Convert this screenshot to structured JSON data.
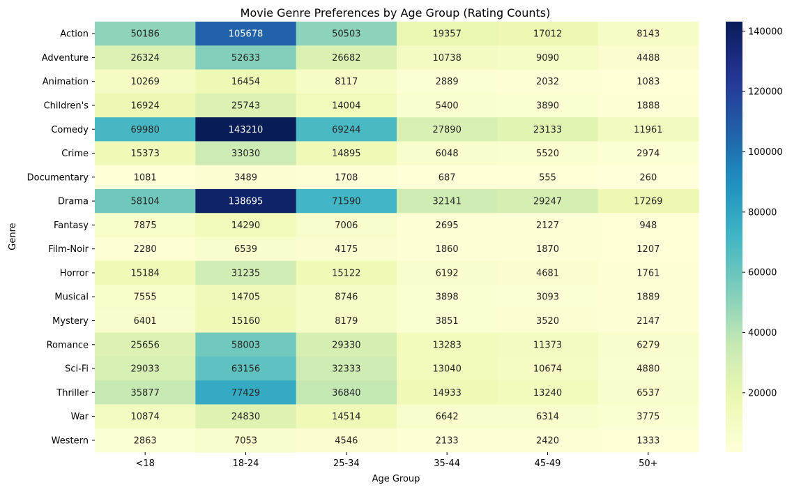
{
  "chart_data": {
    "type": "heatmap",
    "title": "Movie Genre Preferences by Age Group (Rating Counts)",
    "xlabel": "Age Group",
    "ylabel": "Genre",
    "x_categories": [
      "<18",
      "18-24",
      "25-34",
      "35-44",
      "45-49",
      "50+"
    ],
    "y_categories": [
      "Action",
      "Adventure",
      "Animation",
      "Children's",
      "Comedy",
      "Crime",
      "Documentary",
      "Drama",
      "Fantasy",
      "Film-Noir",
      "Horror",
      "Musical",
      "Mystery",
      "Romance",
      "Sci-Fi",
      "Thriller",
      "War",
      "Western"
    ],
    "values": [
      [
        50186,
        105678,
        50503,
        19357,
        17012,
        8143
      ],
      [
        26324,
        52633,
        26682,
        10738,
        9090,
        4488
      ],
      [
        10269,
        16454,
        8117,
        2889,
        2032,
        1083
      ],
      [
        16924,
        25743,
        14004,
        5400,
        3890,
        1888
      ],
      [
        69980,
        143210,
        69244,
        27890,
        23133,
        11961
      ],
      [
        15373,
        33030,
        14895,
        6048,
        5520,
        2974
      ],
      [
        1081,
        3489,
        1708,
        687,
        555,
        260
      ],
      [
        58104,
        138695,
        71590,
        32141,
        29247,
        17269
      ],
      [
        7875,
        14290,
        7006,
        2695,
        2127,
        948
      ],
      [
        2280,
        6539,
        4175,
        1860,
        1870,
        1207
      ],
      [
        15184,
        31235,
        15122,
        6192,
        4681,
        1761
      ],
      [
        7555,
        14705,
        8746,
        3898,
        3093,
        1889
      ],
      [
        6401,
        15160,
        8179,
        3851,
        3520,
        2147
      ],
      [
        25656,
        58003,
        29330,
        13283,
        11373,
        6279
      ],
      [
        29033,
        63156,
        32333,
        13040,
        10674,
        4880
      ],
      [
        35877,
        77429,
        36840,
        14933,
        13240,
        6537
      ],
      [
        10874,
        24830,
        14514,
        6642,
        6314,
        3775
      ],
      [
        2863,
        7053,
        4546,
        2133,
        2420,
        1333
      ]
    ],
    "colormap": "YlGnBu",
    "colorbar": {
      "vmin": 260,
      "vmax": 143210,
      "ticks": [
        20000,
        40000,
        60000,
        80000,
        100000,
        120000,
        140000
      ]
    },
    "annotations": "cell values shown",
    "grid": false
  }
}
